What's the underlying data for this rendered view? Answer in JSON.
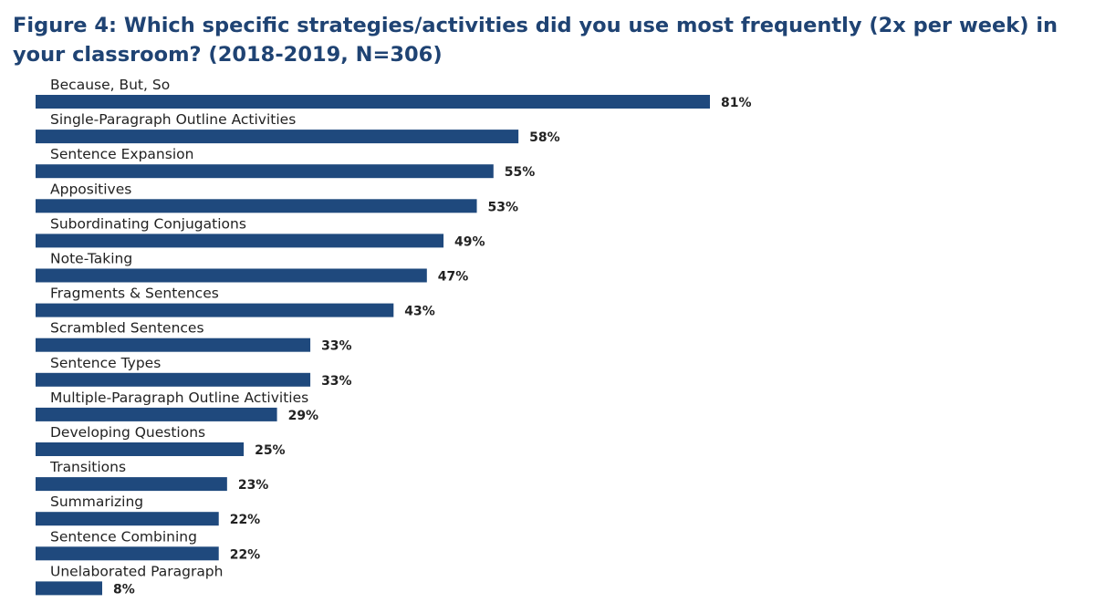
{
  "chart_data": {
    "type": "bar",
    "orientation": "horizontal",
    "title": "Figure 4: Which specific strategies/activities did you use most frequently (2x per week) in your classroom? (2018-2019, N=306)",
    "categories": [
      "Because, But, So",
      "Single-Paragraph Outline Activities",
      "Sentence Expansion",
      "Appositives",
      "Subordinating Conjugations",
      "Note-Taking",
      "Fragments & Sentences",
      "Scrambled Sentences",
      "Sentence Types",
      "Multiple-Paragraph Outline Activities",
      "Developing Questions",
      "Transitions",
      "Summarizing",
      "Sentence Combining",
      "Unelaborated Paragraph"
    ],
    "values": [
      81,
      58,
      55,
      53,
      49,
      47,
      43,
      33,
      33,
      29,
      25,
      23,
      22,
      22,
      8
    ],
    "value_labels": [
      "81%",
      "58%",
      "55%",
      "53%",
      "49%",
      "47%",
      "43%",
      "33%",
      "33%",
      "29%",
      "25%",
      "23%",
      "22%",
      "22%",
      "8%"
    ],
    "unit": "%",
    "xlabel": "",
    "ylabel": "",
    "xlim": [
      0,
      81
    ],
    "grid": false,
    "bar_color": "#1f497d"
  }
}
